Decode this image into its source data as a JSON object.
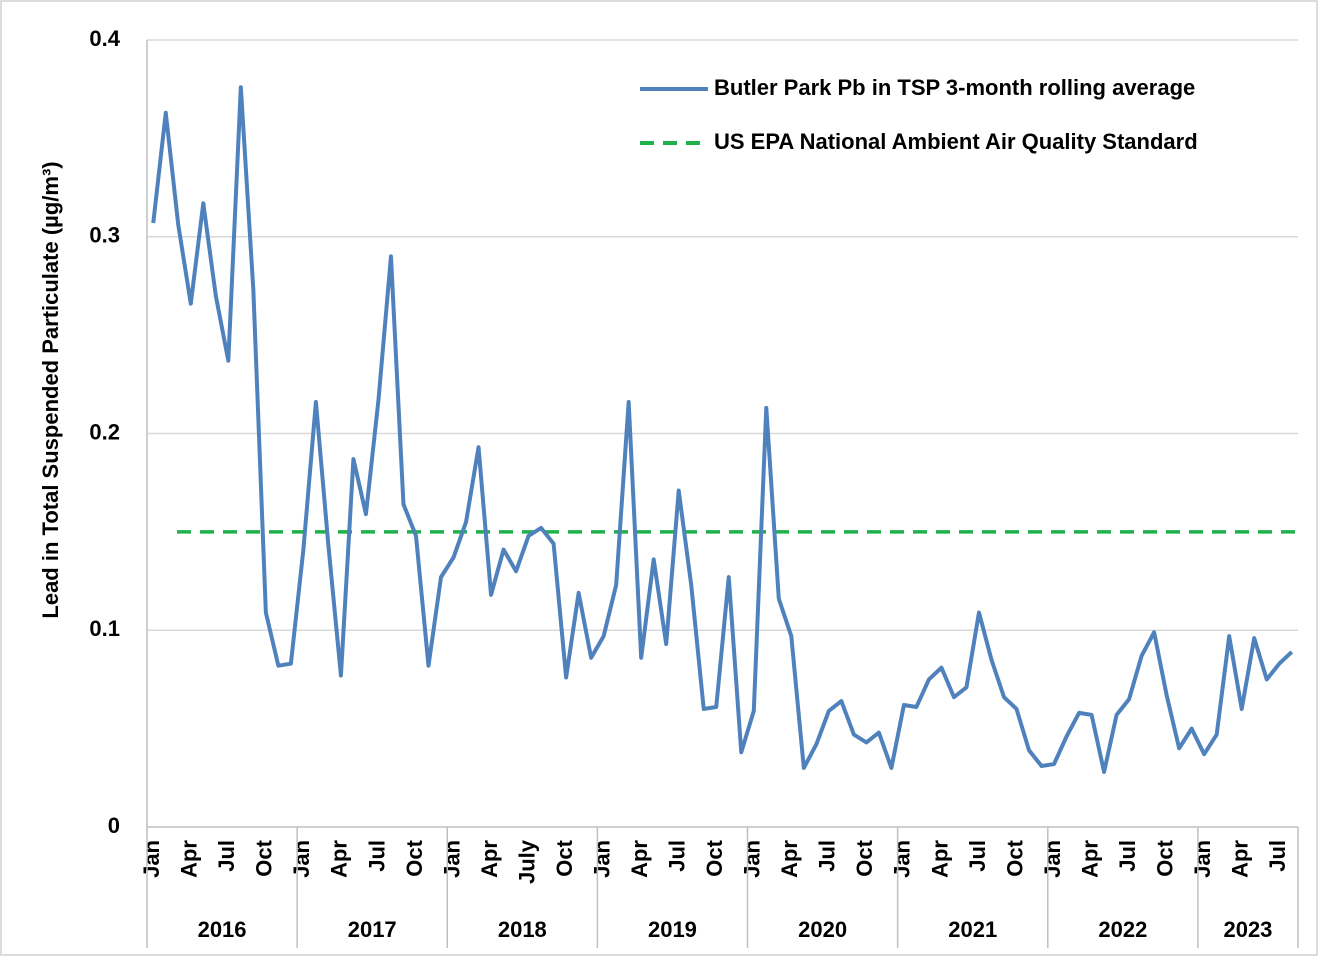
{
  "chart_data": {
    "type": "line",
    "y_label": "Lead in Total Suspended Particulate (µg/m³)",
    "categories": [
      "Jan",
      null,
      null,
      "Apr",
      null,
      null,
      "Jul",
      null,
      null,
      "Oct",
      null,
      null,
      "Jan",
      null,
      null,
      "Apr",
      null,
      null,
      "Jul",
      null,
      null,
      "Oct",
      null,
      null,
      "Jan",
      null,
      null,
      "Apr",
      null,
      null,
      "July",
      null,
      null,
      "Oct",
      null,
      null,
      "Jan",
      null,
      null,
      "Apr",
      null,
      null,
      "Jul",
      null,
      null,
      "Oct",
      null,
      null,
      "Jan",
      null,
      null,
      "Apr",
      null,
      null,
      "Jul",
      null,
      null,
      "Oct",
      null,
      null,
      "Jan",
      null,
      null,
      "Apr",
      null,
      null,
      "Jul",
      null,
      null,
      "Oct",
      null,
      null,
      "Jan",
      null,
      null,
      "Apr",
      null,
      null,
      "Jul",
      null,
      null,
      "Oct",
      null,
      null,
      "Jan",
      null,
      null,
      "Apr",
      null,
      null,
      "Jul",
      null
    ],
    "year_groups": [
      "2016",
      "2017",
      "2018",
      "2019",
      "2020",
      "2021",
      "2022",
      "2023"
    ],
    "series": [
      {
        "name": "Butler Park Pb in TSP 3-month rolling average",
        "color": "#4f81bd",
        "values": [
          0.307,
          0.363,
          0.306,
          0.266,
          0.317,
          0.27,
          0.237,
          0.376,
          0.273,
          0.109,
          0.082,
          0.083,
          0.141,
          0.216,
          0.143,
          0.077,
          0.187,
          0.159,
          0.217,
          0.29,
          0.164,
          0.148,
          0.082,
          0.127,
          0.137,
          0.155,
          0.193,
          0.118,
          0.141,
          0.13,
          0.148,
          0.152,
          0.144,
          0.076,
          0.119,
          0.086,
          0.097,
          0.123,
          0.216,
          0.086,
          0.136,
          0.093,
          0.171,
          0.123,
          0.06,
          0.061,
          0.127,
          0.038,
          0.059,
          0.213,
          0.116,
          0.097,
          0.03,
          0.042,
          0.059,
          0.064,
          0.047,
          0.043,
          0.048,
          0.03,
          0.062,
          0.061,
          0.075,
          0.081,
          0.066,
          0.071,
          0.109,
          0.085,
          0.066,
          0.06,
          0.039,
          0.031,
          0.032,
          0.046,
          0.058,
          0.057,
          0.028,
          0.057,
          0.065,
          0.087,
          0.099,
          0.067,
          0.04,
          0.05,
          0.037,
          0.047,
          0.097,
          0.06,
          0.096,
          0.075,
          0.083,
          0.089
        ]
      }
    ],
    "reference_lines": [
      {
        "name": "US EPA National Ambient Air Quality Standard",
        "value": 0.15,
        "color": "#1fb14a"
      }
    ],
    "ylim": [
      0,
      0.4
    ],
    "yticks": [
      0,
      0.1,
      0.2,
      0.3,
      0.4
    ],
    "grid": true
  }
}
